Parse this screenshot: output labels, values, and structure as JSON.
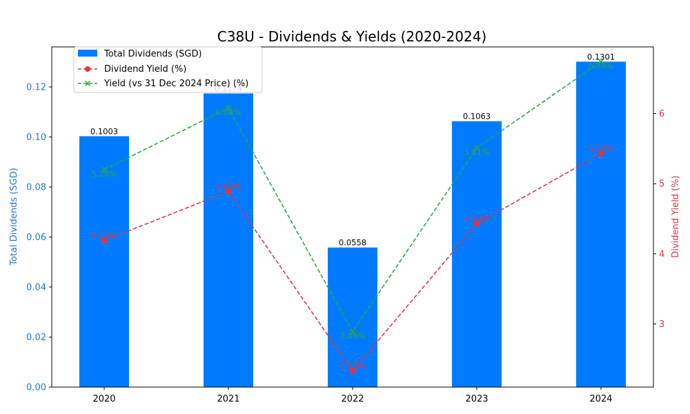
{
  "chart_data": {
    "type": "bar",
    "title": "C38U - Dividends & Yields (2020-2024)",
    "categories": [
      "2020",
      "2021",
      "2022",
      "2023",
      "2024"
    ],
    "left_axis": {
      "label": "Total Dividends (SGD)",
      "ylim": [
        0,
        0.136
      ],
      "ticks": [
        "0.00",
        "0.02",
        "0.04",
        "0.06",
        "0.08",
        "0.10",
        "0.12"
      ],
      "color": "#1f77d4"
    },
    "right_axis": {
      "label": "Dividend Yield (%)",
      "ylim": [
        2.1,
        6.95
      ],
      "ticks": [
        "3",
        "4",
        "5",
        "6"
      ],
      "color": "#dc3545"
    },
    "series": [
      {
        "name": "Total Dividends (SGD)",
        "kind": "bar",
        "axis": "left",
        "color": "#007bff",
        "values": [
          0.1003,
          0.1174,
          0.0558,
          0.1063,
          0.1301
        ],
        "labels": [
          "0.1003",
          "0.1174",
          "0.0558",
          "0.1063",
          "0.1301"
        ]
      },
      {
        "name": "Dividend Yield (%)",
        "kind": "line",
        "marker": "circle",
        "axis": "right",
        "color": "#dc3545",
        "values": [
          4.19,
          4.89,
          2.33,
          4.43,
          5.43
        ],
        "labels": [
          "4.19%",
          "4.89%",
          "2.33%",
          "4.43%",
          "5.43%"
        ]
      },
      {
        "name": "Yield (vs 31 Dec 2024 Price) (%)",
        "kind": "line",
        "marker": "x",
        "axis": "right",
        "color": "#28a745",
        "values": [
          5.2,
          6.08,
          2.89,
          5.51,
          6.74
        ],
        "labels": [
          "5.20%",
          "6.08%",
          "2.89%",
          "5.51%",
          "6.74%"
        ]
      }
    ],
    "legend_position": "top-left",
    "grid": false
  }
}
